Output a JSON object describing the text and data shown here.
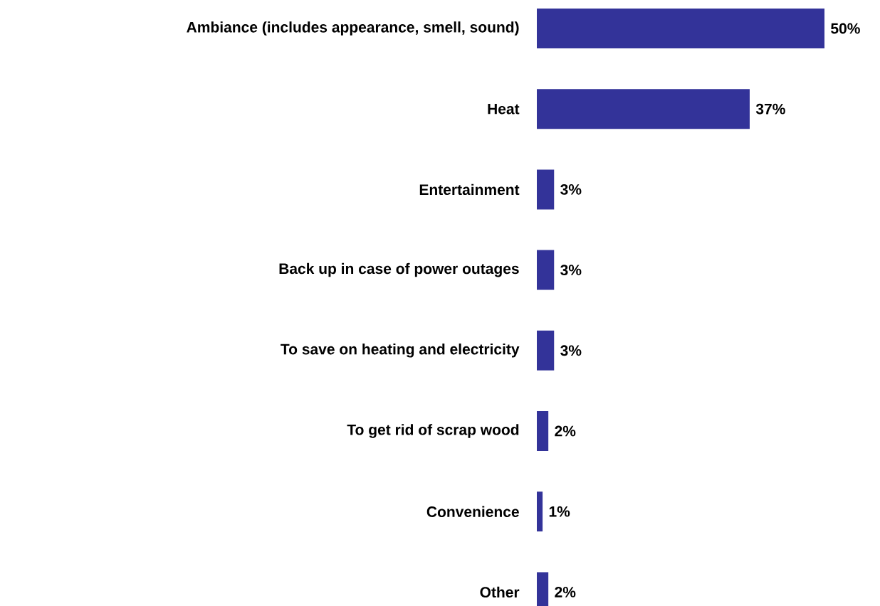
{
  "chart_data": {
    "type": "bar",
    "orientation": "horizontal",
    "categories": [
      "Ambiance (includes appearance, smell, sound)",
      "Heat",
      "Entertainment",
      "Back up in case of power outages",
      "To save on heating and electricity",
      "To get rid of scrap wood",
      "Convenience",
      "Other"
    ],
    "values": [
      50,
      37,
      3,
      3,
      3,
      2,
      1,
      2
    ],
    "value_labels": [
      "50%",
      "37%",
      "3%",
      "3%",
      "3%",
      "2%",
      "1%",
      "2%"
    ],
    "color": "#333399"
  }
}
